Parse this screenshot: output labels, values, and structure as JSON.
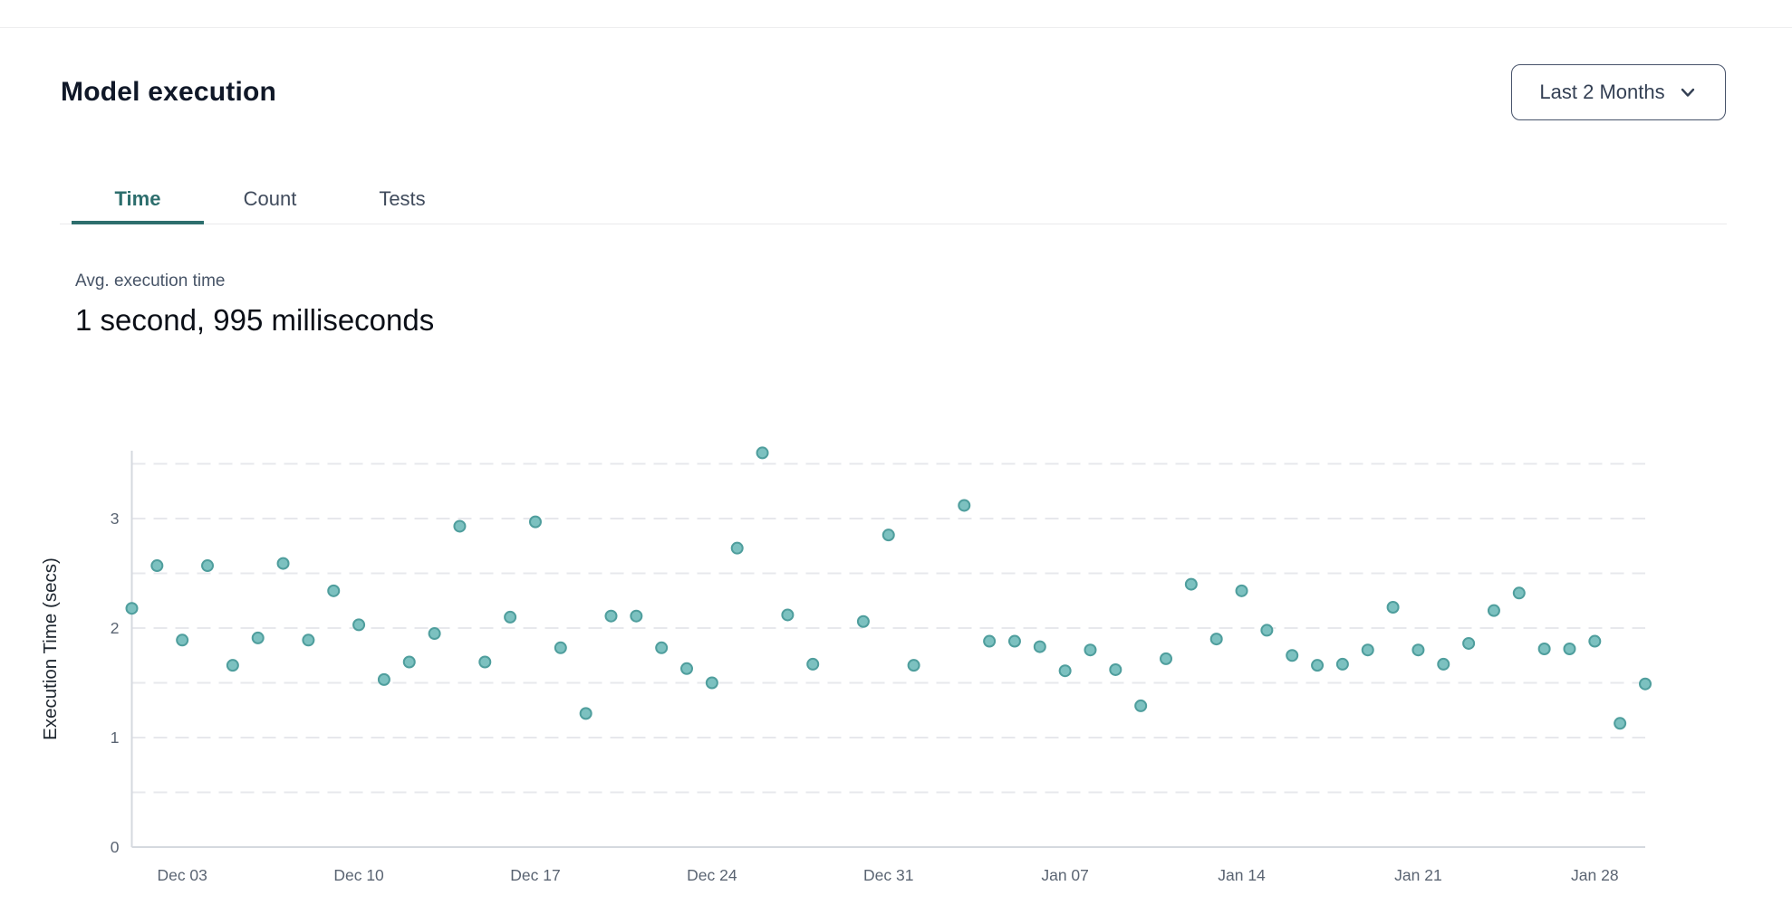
{
  "header": {
    "title": "Model execution",
    "range_selector": {
      "label": "Last 2 Months",
      "icon": "chevron-down-icon"
    }
  },
  "tabs": [
    {
      "label": "Time",
      "active": true
    },
    {
      "label": "Count",
      "active": false
    },
    {
      "label": "Tests",
      "active": false
    }
  ],
  "summary": {
    "label": "Avg. execution time",
    "value": "1 second, 995 milliseconds"
  },
  "colors": {
    "accent_teal": "#2d6e6d",
    "point_fill": "#7cc1c0",
    "point_stroke": "#4f9e9d",
    "grid_line": "#e7e8ec",
    "axis_line": "#d5d9df",
    "tick_text": "#5a6472",
    "axis_label_text": "#1f2730",
    "button_border": "#47536a",
    "text_dark": "#101828",
    "text_slate": "#475467"
  },
  "chart_data": {
    "type": "scatter",
    "title": "",
    "xlabel": "",
    "ylabel": "Execution Time (secs)",
    "ylim": [
      0,
      3.5
    ],
    "y_ticks": [
      0,
      1,
      2,
      3
    ],
    "grid_step": 0.5,
    "grid_max": 3.5,
    "grid": "dashed-horizontal",
    "legend": "none",
    "x_ticks": [
      {
        "day": 3,
        "label": "Dec 03"
      },
      {
        "day": 10,
        "label": "Dec 10"
      },
      {
        "day": 17,
        "label": "Dec 17"
      },
      {
        "day": 24,
        "label": "Dec 24"
      },
      {
        "day": 31,
        "label": "Dec 31"
      },
      {
        "day": 38,
        "label": "Jan 07"
      },
      {
        "day": 45,
        "label": "Jan 14"
      },
      {
        "day": 52,
        "label": "Jan 21"
      },
      {
        "day": 59,
        "label": "Jan 28"
      }
    ],
    "x_range_days": [
      1,
      61
    ],
    "points": [
      {
        "day": 1,
        "date": "Dec 01",
        "secs": 2.18
      },
      {
        "day": 2,
        "date": "Dec 02",
        "secs": 2.57
      },
      {
        "day": 3,
        "date": "Dec 03",
        "secs": 1.89
      },
      {
        "day": 4,
        "date": "Dec 04",
        "secs": 2.57
      },
      {
        "day": 5,
        "date": "Dec 05",
        "secs": 1.66
      },
      {
        "day": 6,
        "date": "Dec 06",
        "secs": 1.91
      },
      {
        "day": 7,
        "date": "Dec 07",
        "secs": 2.59
      },
      {
        "day": 8,
        "date": "Dec 08",
        "secs": 1.89
      },
      {
        "day": 9,
        "date": "Dec 09",
        "secs": 2.34
      },
      {
        "day": 10,
        "date": "Dec 10",
        "secs": 2.03
      },
      {
        "day": 11,
        "date": "Dec 11",
        "secs": 1.53
      },
      {
        "day": 12,
        "date": "Dec 12",
        "secs": 1.69
      },
      {
        "day": 13,
        "date": "Dec 13",
        "secs": 1.95
      },
      {
        "day": 14,
        "date": "Dec 14",
        "secs": 2.93
      },
      {
        "day": 15,
        "date": "Dec 15",
        "secs": 1.69
      },
      {
        "day": 16,
        "date": "Dec 16",
        "secs": 2.1
      },
      {
        "day": 17,
        "date": "Dec 17",
        "secs": 2.97
      },
      {
        "day": 18,
        "date": "Dec 18",
        "secs": 1.82
      },
      {
        "day": 19,
        "date": "Dec 19",
        "secs": 1.22
      },
      {
        "day": 20,
        "date": "Dec 20",
        "secs": 2.11
      },
      {
        "day": 21,
        "date": "Dec 21",
        "secs": 2.11
      },
      {
        "day": 22,
        "date": "Dec 22",
        "secs": 1.82
      },
      {
        "day": 23,
        "date": "Dec 23",
        "secs": 1.63
      },
      {
        "day": 24,
        "date": "Dec 24",
        "secs": 1.5
      },
      {
        "day": 25,
        "date": "Dec 25",
        "secs": 2.73
      },
      {
        "day": 26,
        "date": "Dec 26",
        "secs": 3.6
      },
      {
        "day": 27,
        "date": "Dec 27",
        "secs": 2.12
      },
      {
        "day": 28,
        "date": "Dec 28",
        "secs": 1.67
      },
      {
        "day": 30,
        "date": "Dec 30",
        "secs": 2.06
      },
      {
        "day": 31,
        "date": "Dec 31",
        "secs": 2.85
      },
      {
        "day": 32,
        "date": "Jan 01",
        "secs": 1.66
      },
      {
        "day": 34,
        "date": "Jan 03",
        "secs": 3.12
      },
      {
        "day": 35,
        "date": "Jan 04",
        "secs": 1.88
      },
      {
        "day": 36,
        "date": "Jan 05",
        "secs": 1.88
      },
      {
        "day": 37,
        "date": "Jan 06",
        "secs": 1.83
      },
      {
        "day": 38,
        "date": "Jan 07",
        "secs": 1.61
      },
      {
        "day": 39,
        "date": "Jan 08",
        "secs": 1.8
      },
      {
        "day": 40,
        "date": "Jan 09",
        "secs": 1.62
      },
      {
        "day": 41,
        "date": "Jan 10",
        "secs": 1.29
      },
      {
        "day": 42,
        "date": "Jan 11",
        "secs": 1.72
      },
      {
        "day": 43,
        "date": "Jan 12",
        "secs": 2.4
      },
      {
        "day": 44,
        "date": "Jan 13",
        "secs": 1.9
      },
      {
        "day": 45,
        "date": "Jan 14",
        "secs": 2.34
      },
      {
        "day": 46,
        "date": "Jan 15",
        "secs": 1.98
      },
      {
        "day": 47,
        "date": "Jan 16",
        "secs": 1.75
      },
      {
        "day": 48,
        "date": "Jan 17",
        "secs": 1.66
      },
      {
        "day": 49,
        "date": "Jan 18",
        "secs": 1.67
      },
      {
        "day": 50,
        "date": "Jan 19",
        "secs": 1.8
      },
      {
        "day": 51,
        "date": "Jan 20",
        "secs": 2.19
      },
      {
        "day": 52,
        "date": "Jan 21",
        "secs": 1.8
      },
      {
        "day": 53,
        "date": "Jan 22",
        "secs": 1.67
      },
      {
        "day": 54,
        "date": "Jan 23",
        "secs": 1.86
      },
      {
        "day": 55,
        "date": "Jan 24",
        "secs": 2.16
      },
      {
        "day": 56,
        "date": "Jan 25",
        "secs": 2.32
      },
      {
        "day": 57,
        "date": "Jan 26",
        "secs": 1.81
      },
      {
        "day": 58,
        "date": "Jan 27",
        "secs": 1.81
      },
      {
        "day": 59,
        "date": "Jan 28",
        "secs": 1.88
      },
      {
        "day": 60,
        "date": "Jan 29",
        "secs": 1.13
      },
      {
        "day": 61,
        "date": "Jan 30",
        "secs": 1.49
      }
    ]
  }
}
